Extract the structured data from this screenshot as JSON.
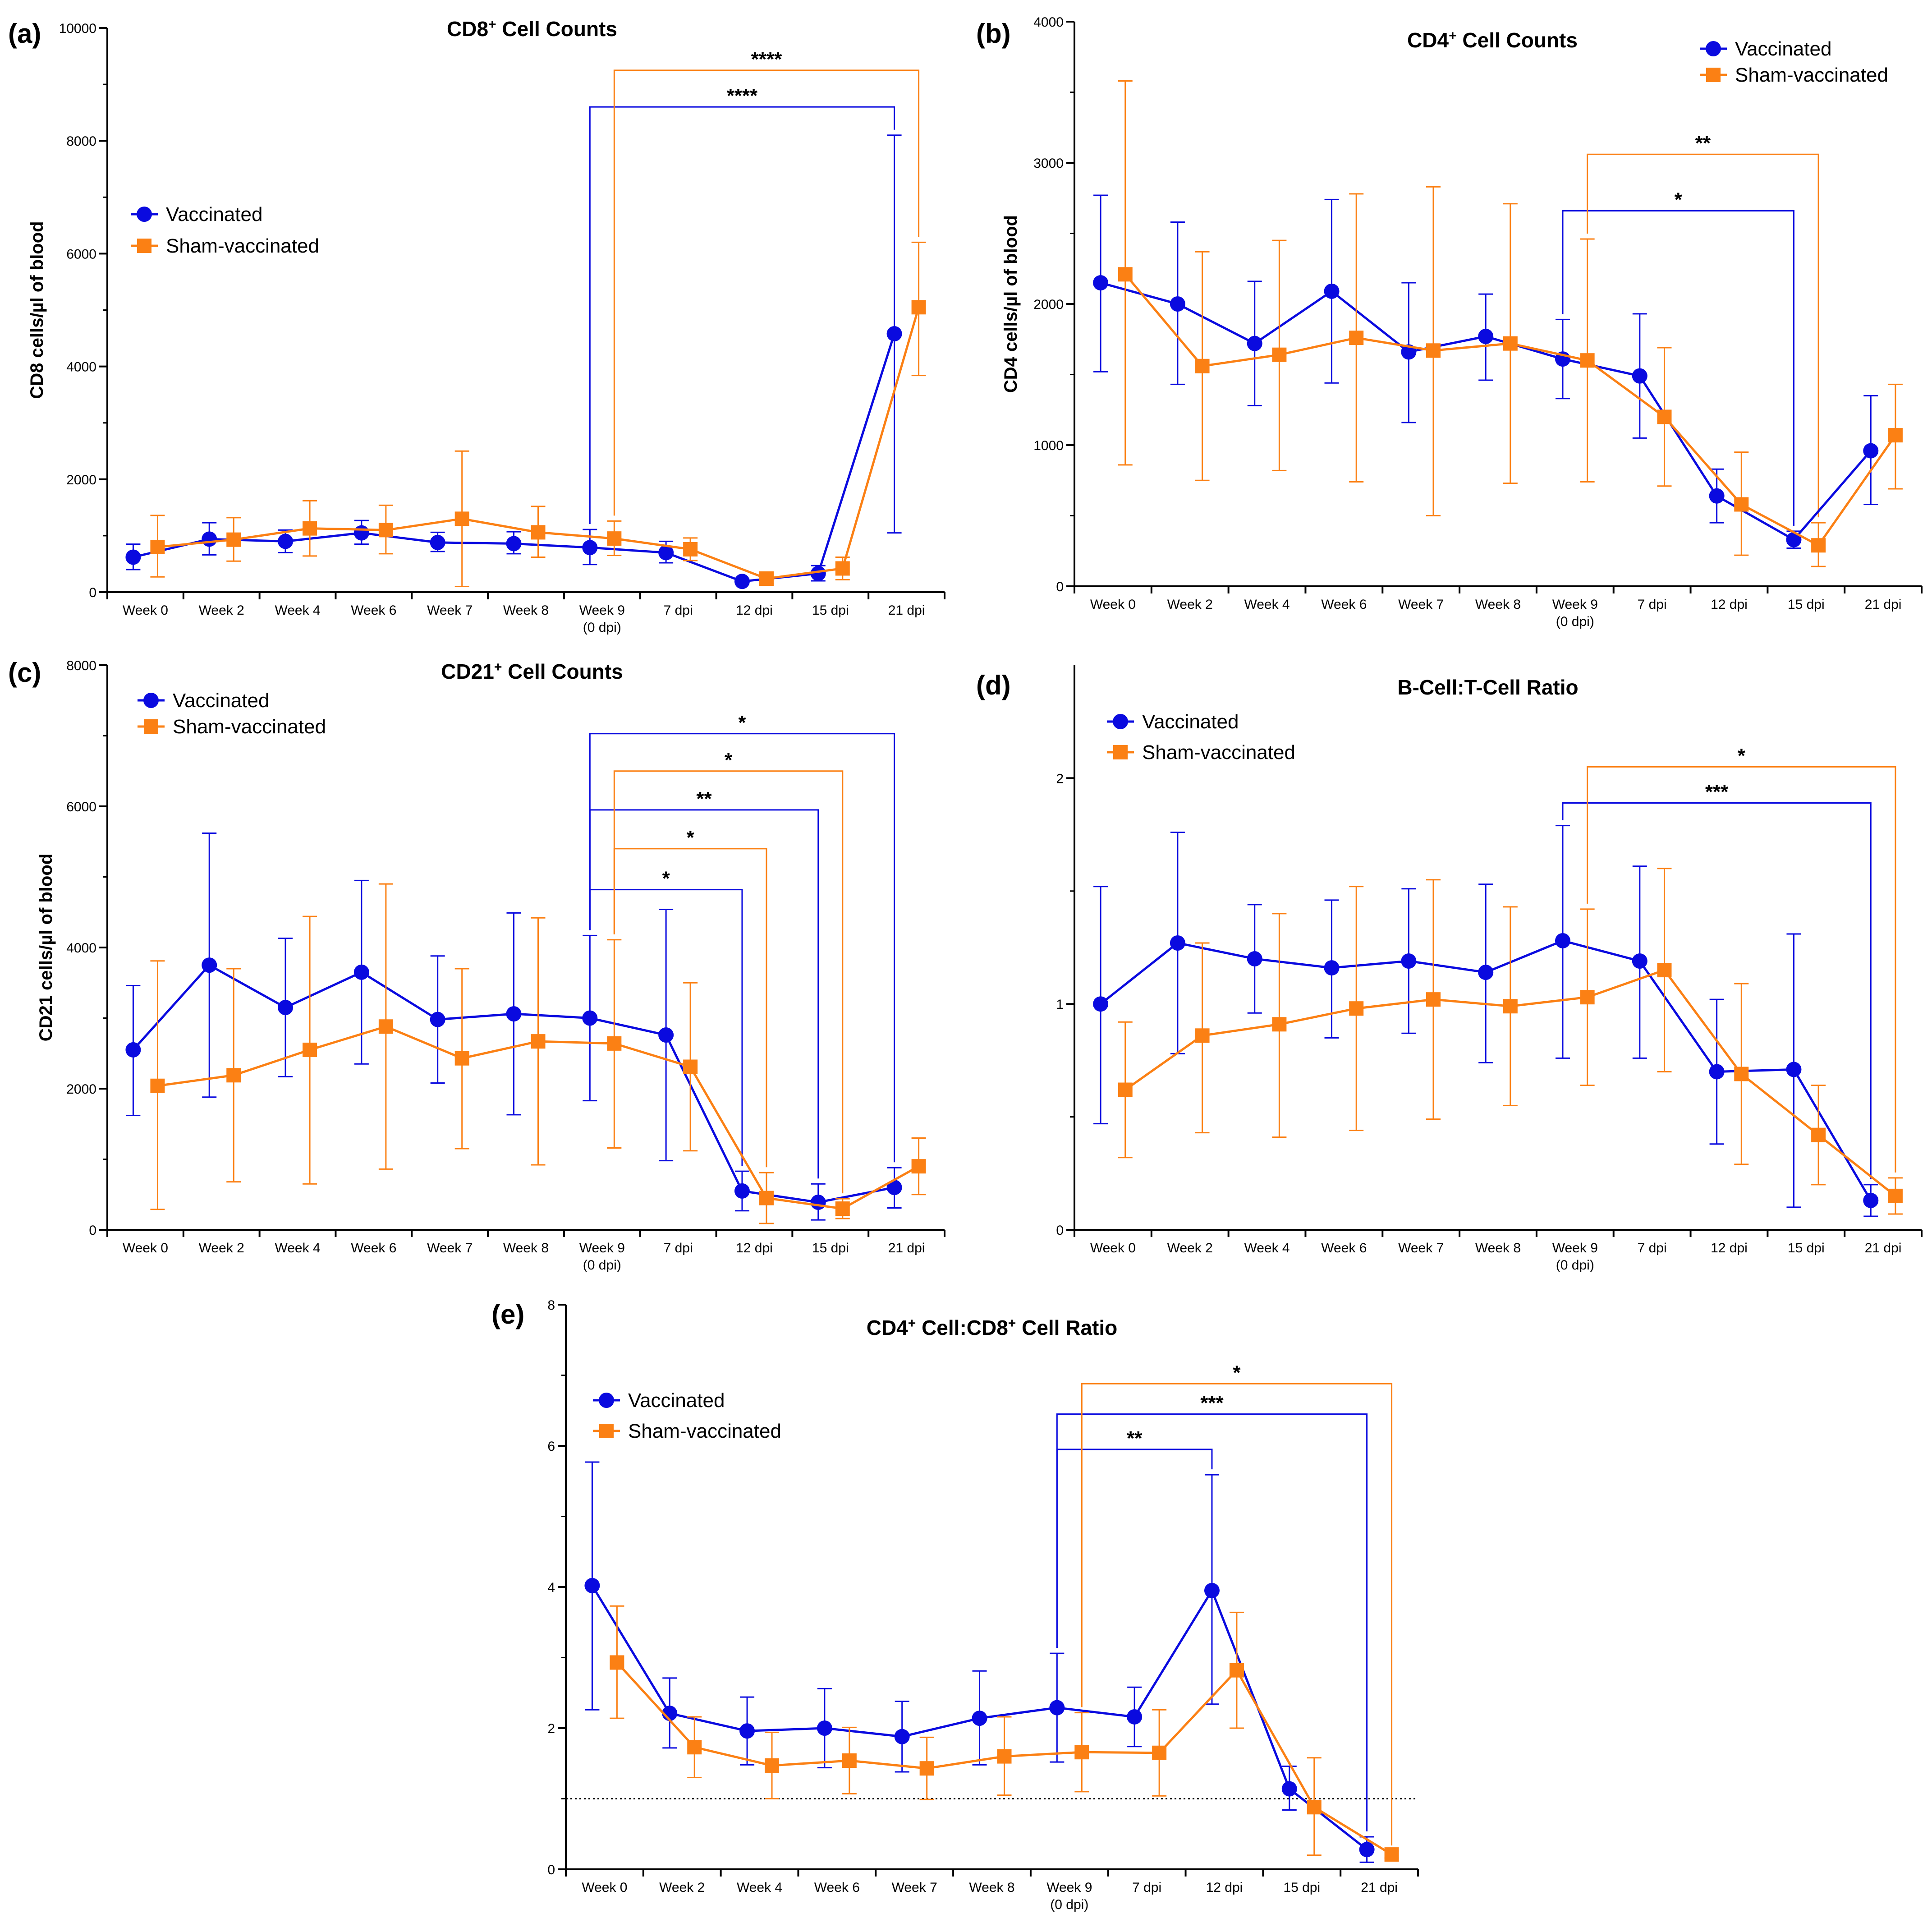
{
  "chart_data": [
    {
      "id": "a",
      "type": "line",
      "panel_label": "(a)",
      "title": "CD8",
      "title_sup": "+",
      "title_rest": " Cell Counts",
      "xlabel": "",
      "ylabel": "CD8 cells/µl of blood",
      "ylim": [
        0,
        10000
      ],
      "yticks": [
        0,
        2000,
        4000,
        6000,
        8000,
        10000
      ],
      "categories": [
        "Week 0",
        "Week 2",
        "Week 4",
        "Week 6",
        "Week 7",
        "Week 8",
        "Week 9",
        "7 dpi",
        "12 dpi",
        "15 dpi",
        "21 dpi"
      ],
      "categories_sub": [
        "",
        "",
        "",
        "",
        "",
        "",
        "(0 dpi)",
        "",
        "",
        "",
        ""
      ],
      "legend_position": "middle-left",
      "series": [
        {
          "name": "Vaccinated",
          "color": "#0a0adf",
          "marker": "circle",
          "values": [
            620,
            940,
            900,
            1050,
            880,
            860,
            790,
            700,
            190,
            330,
            4580
          ],
          "err_low": [
            400,
            660,
            700,
            850,
            720,
            680,
            490,
            520,
            150,
            200,
            1050
          ],
          "err_high": [
            850,
            1230,
            1100,
            1270,
            1060,
            1070,
            1110,
            900,
            240,
            470,
            8100
          ]
        },
        {
          "name": "Sham-vaccinated",
          "color": "#fb8014",
          "marker": "square",
          "values": [
            800,
            930,
            1130,
            1100,
            1300,
            1060,
            950,
            760,
            240,
            420,
            5050
          ],
          "err_low": [
            270,
            550,
            640,
            680,
            100,
            620,
            650,
            560,
            150,
            220,
            3840
          ],
          "err_high": [
            1360,
            1320,
            1620,
            1540,
            2500,
            1520,
            1260,
            960,
            320,
            620,
            6200
          ]
        }
      ],
      "annotations": [
        {
          "series": 0,
          "from": 6,
          "to": 10,
          "label": "****",
          "y": 8600
        },
        {
          "series": 1,
          "from": 6,
          "to": 10,
          "label": "****",
          "y": 9250
        }
      ]
    },
    {
      "id": "b",
      "type": "line",
      "panel_label": "(b)",
      "title": "CD4",
      "title_sup": "+",
      "title_rest": " Cell Counts",
      "xlabel": "",
      "ylabel": "CD4 cells/µl of blood",
      "ylim": [
        0,
        4000
      ],
      "yticks": [
        0,
        1000,
        2000,
        3000,
        4000
      ],
      "categories": [
        "Week 0",
        "Week 2",
        "Week 4",
        "Week 6",
        "Week 7",
        "Week 8",
        "Week 9",
        "7 dpi",
        "12 dpi",
        "15 dpi",
        "21 dpi"
      ],
      "categories_sub": [
        "",
        "",
        "",
        "",
        "",
        "",
        "(0 dpi)",
        "",
        "",
        "",
        ""
      ],
      "legend_position": "top-right",
      "series": [
        {
          "name": "Vaccinated",
          "color": "#0a0adf",
          "marker": "circle",
          "values": [
            2150,
            2000,
            1720,
            2090,
            1660,
            1770,
            1610,
            1490,
            640,
            330,
            960
          ],
          "err_low": [
            1520,
            1430,
            1280,
            1440,
            1160,
            1460,
            1330,
            1050,
            450,
            270,
            580
          ],
          "err_high": [
            2770,
            2580,
            2160,
            2740,
            2150,
            2070,
            1890,
            1930,
            830,
            390,
            1350
          ]
        },
        {
          "name": "Sham-vaccinated",
          "color": "#fb8014",
          "marker": "square",
          "values": [
            2210,
            1560,
            1640,
            1760,
            1670,
            1720,
            1600,
            1200,
            580,
            290,
            1070
          ],
          "err_low": [
            860,
            750,
            820,
            740,
            500,
            730,
            740,
            710,
            220,
            140,
            690
          ],
          "err_high": [
            3580,
            2370,
            2450,
            2780,
            2830,
            2710,
            2460,
            1690,
            950,
            450,
            1430
          ]
        }
      ],
      "annotations": [
        {
          "series": 0,
          "from": 6,
          "to": 9,
          "label": "*",
          "y": 2660
        },
        {
          "series": 1,
          "from": 6,
          "to": 9,
          "label": "**",
          "y": 3060
        }
      ]
    },
    {
      "id": "c",
      "type": "line",
      "panel_label": "(c)",
      "title": "CD21",
      "title_sup": "+",
      "title_rest": " Cell Counts",
      "xlabel": "",
      "ylabel": "CD21 cells/µl of blood",
      "ylim": [
        0,
        8000
      ],
      "yticks": [
        0,
        2000,
        4000,
        6000,
        8000
      ],
      "categories": [
        "Week 0",
        "Week 2",
        "Week 4",
        "Week 6",
        "Week 7",
        "Week 8",
        "Week 9",
        "7 dpi",
        "12 dpi",
        "15 dpi",
        "21 dpi"
      ],
      "categories_sub": [
        "",
        "",
        "",
        "",
        "",
        "",
        "(0 dpi)",
        "",
        "",
        "",
        ""
      ],
      "legend_position": "top-left",
      "series": [
        {
          "name": "Vaccinated",
          "color": "#0a0adf",
          "marker": "circle",
          "values": [
            2550,
            3750,
            3150,
            3650,
            2980,
            3060,
            3000,
            2760,
            550,
            390,
            600
          ],
          "err_low": [
            1620,
            1880,
            2170,
            2350,
            2080,
            1630,
            1830,
            980,
            270,
            140,
            310
          ],
          "err_high": [
            3460,
            5620,
            4130,
            4950,
            3880,
            4490,
            4170,
            4540,
            830,
            650,
            880
          ]
        },
        {
          "name": "Sham-vaccinated",
          "color": "#fb8014",
          "marker": "square",
          "values": [
            2040,
            2190,
            2550,
            2880,
            2430,
            2670,
            2640,
            2310,
            450,
            300,
            900
          ],
          "err_low": [
            290,
            680,
            650,
            860,
            1150,
            920,
            1160,
            1120,
            90,
            160,
            500
          ],
          "err_high": [
            3810,
            3700,
            4440,
            4900,
            3700,
            4420,
            4110,
            3500,
            810,
            440,
            1300
          ]
        }
      ],
      "annotations": [
        {
          "series": 0,
          "from": 6,
          "to": 8,
          "label": "*",
          "y": 4820
        },
        {
          "series": 1,
          "from": 6,
          "to": 8,
          "label": "*",
          "y": 5400
        },
        {
          "series": 0,
          "from": 6,
          "to": 9,
          "label": "**",
          "y": 5950
        },
        {
          "series": 1,
          "from": 6,
          "to": 9,
          "label": "*",
          "y": 6500
        },
        {
          "series": 0,
          "from": 6,
          "to": 10,
          "label": "*",
          "y": 7030
        }
      ]
    },
    {
      "id": "d",
      "type": "line",
      "panel_label": "(d)",
      "title": "B-Cell:T-Cell Ratio",
      "title_sup": "",
      "title_rest": "",
      "xlabel": "",
      "ylabel": "",
      "ylim": [
        0,
        2.5
      ],
      "yticks": [
        0,
        1,
        2
      ],
      "categories": [
        "Week 0",
        "Week 2",
        "Week 4",
        "Week 6",
        "Week 7",
        "Week 8",
        "Week 9",
        "7 dpi",
        "12 dpi",
        "15 dpi",
        "21 dpi"
      ],
      "categories_sub": [
        "",
        "",
        "",
        "",
        "",
        "",
        "(0 dpi)",
        "",
        "",
        "",
        ""
      ],
      "legend_position": "top-left",
      "series": [
        {
          "name": "Vaccinated",
          "color": "#0a0adf",
          "marker": "circle",
          "values": [
            1.0,
            1.27,
            1.2,
            1.16,
            1.19,
            1.14,
            1.28,
            1.19,
            0.7,
            0.71,
            0.13
          ],
          "err_low": [
            0.47,
            0.78,
            0.96,
            0.85,
            0.87,
            0.74,
            0.76,
            0.76,
            0.38,
            0.1,
            0.06
          ],
          "err_high": [
            1.52,
            1.76,
            1.44,
            1.46,
            1.51,
            1.53,
            1.79,
            1.61,
            1.02,
            1.31,
            0.2
          ]
        },
        {
          "name": "Sham-vaccinated",
          "color": "#fb8014",
          "marker": "square",
          "values": [
            0.62,
            0.86,
            0.91,
            0.98,
            1.02,
            0.99,
            1.03,
            1.15,
            0.69,
            0.42,
            0.15
          ],
          "err_low": [
            0.32,
            0.43,
            0.41,
            0.44,
            0.49,
            0.55,
            0.64,
            0.7,
            0.29,
            0.2,
            0.07
          ],
          "err_high": [
            0.92,
            1.27,
            1.4,
            1.52,
            1.55,
            1.43,
            1.42,
            1.6,
            1.09,
            0.64,
            0.23
          ]
        }
      ],
      "annotations": [
        {
          "series": 0,
          "from": 6,
          "to": 10,
          "label": "***",
          "y": 1.89
        },
        {
          "series": 1,
          "from": 6,
          "to": 10,
          "label": "*",
          "y": 2.05
        }
      ]
    },
    {
      "id": "e",
      "type": "line",
      "panel_label": "(e)",
      "title": "CD4",
      "title_sup": "+",
      "title_rest": " Cell:CD8",
      "title_sup2": "+",
      "title_rest2": " Cell Ratio",
      "xlabel": "",
      "ylabel": "",
      "ylim": [
        0,
        8
      ],
      "yticks": [
        0,
        2,
        4,
        6,
        8
      ],
      "reference_line": 1,
      "categories": [
        "Week 0",
        "Week 2",
        "Week 4",
        "Week 6",
        "Week 7",
        "Week 8",
        "Week 9",
        "7 dpi",
        "12 dpi",
        "15 dpi",
        "21 dpi"
      ],
      "categories_sub": [
        "",
        "",
        "",
        "",
        "",
        "",
        "(0 dpi)",
        "",
        "",
        "",
        ""
      ],
      "legend_position": "top-left",
      "series": [
        {
          "name": "Vaccinated",
          "color": "#0a0adf",
          "marker": "circle",
          "values": [
            4.02,
            2.21,
            1.96,
            2.0,
            1.88,
            2.14,
            2.29,
            2.16,
            3.95,
            1.14,
            0.28
          ],
          "err_low": [
            2.26,
            1.72,
            1.48,
            1.44,
            1.38,
            1.48,
            1.52,
            1.74,
            2.34,
            0.84,
            0.1
          ],
          "err_high": [
            5.77,
            2.71,
            2.44,
            2.56,
            2.38,
            2.81,
            3.06,
            2.58,
            5.59,
            1.46,
            0.46
          ]
        },
        {
          "name": "Sham-vaccinated",
          "color": "#fb8014",
          "marker": "square",
          "values": [
            2.93,
            1.73,
            1.47,
            1.54,
            1.43,
            1.6,
            1.66,
            1.65,
            2.82,
            0.88,
            0.21
          ],
          "err_low": [
            2.14,
            1.3,
            1.0,
            1.07,
            0.99,
            1.05,
            1.1,
            1.04,
            2.0,
            0.2,
            0.16
          ],
          "err_high": [
            3.73,
            2.16,
            1.94,
            2.01,
            1.87,
            2.16,
            2.22,
            2.26,
            3.64,
            1.58,
            0.26
          ]
        }
      ],
      "annotations": [
        {
          "series": 0,
          "from": 6,
          "to": 8,
          "label": "**",
          "y": 5.95
        },
        {
          "series": 0,
          "from": 6,
          "to": 10,
          "label": "***",
          "y": 6.45
        },
        {
          "series": 1,
          "from": 6,
          "to": 10,
          "label": "*",
          "y": 6.88
        }
      ]
    }
  ]
}
